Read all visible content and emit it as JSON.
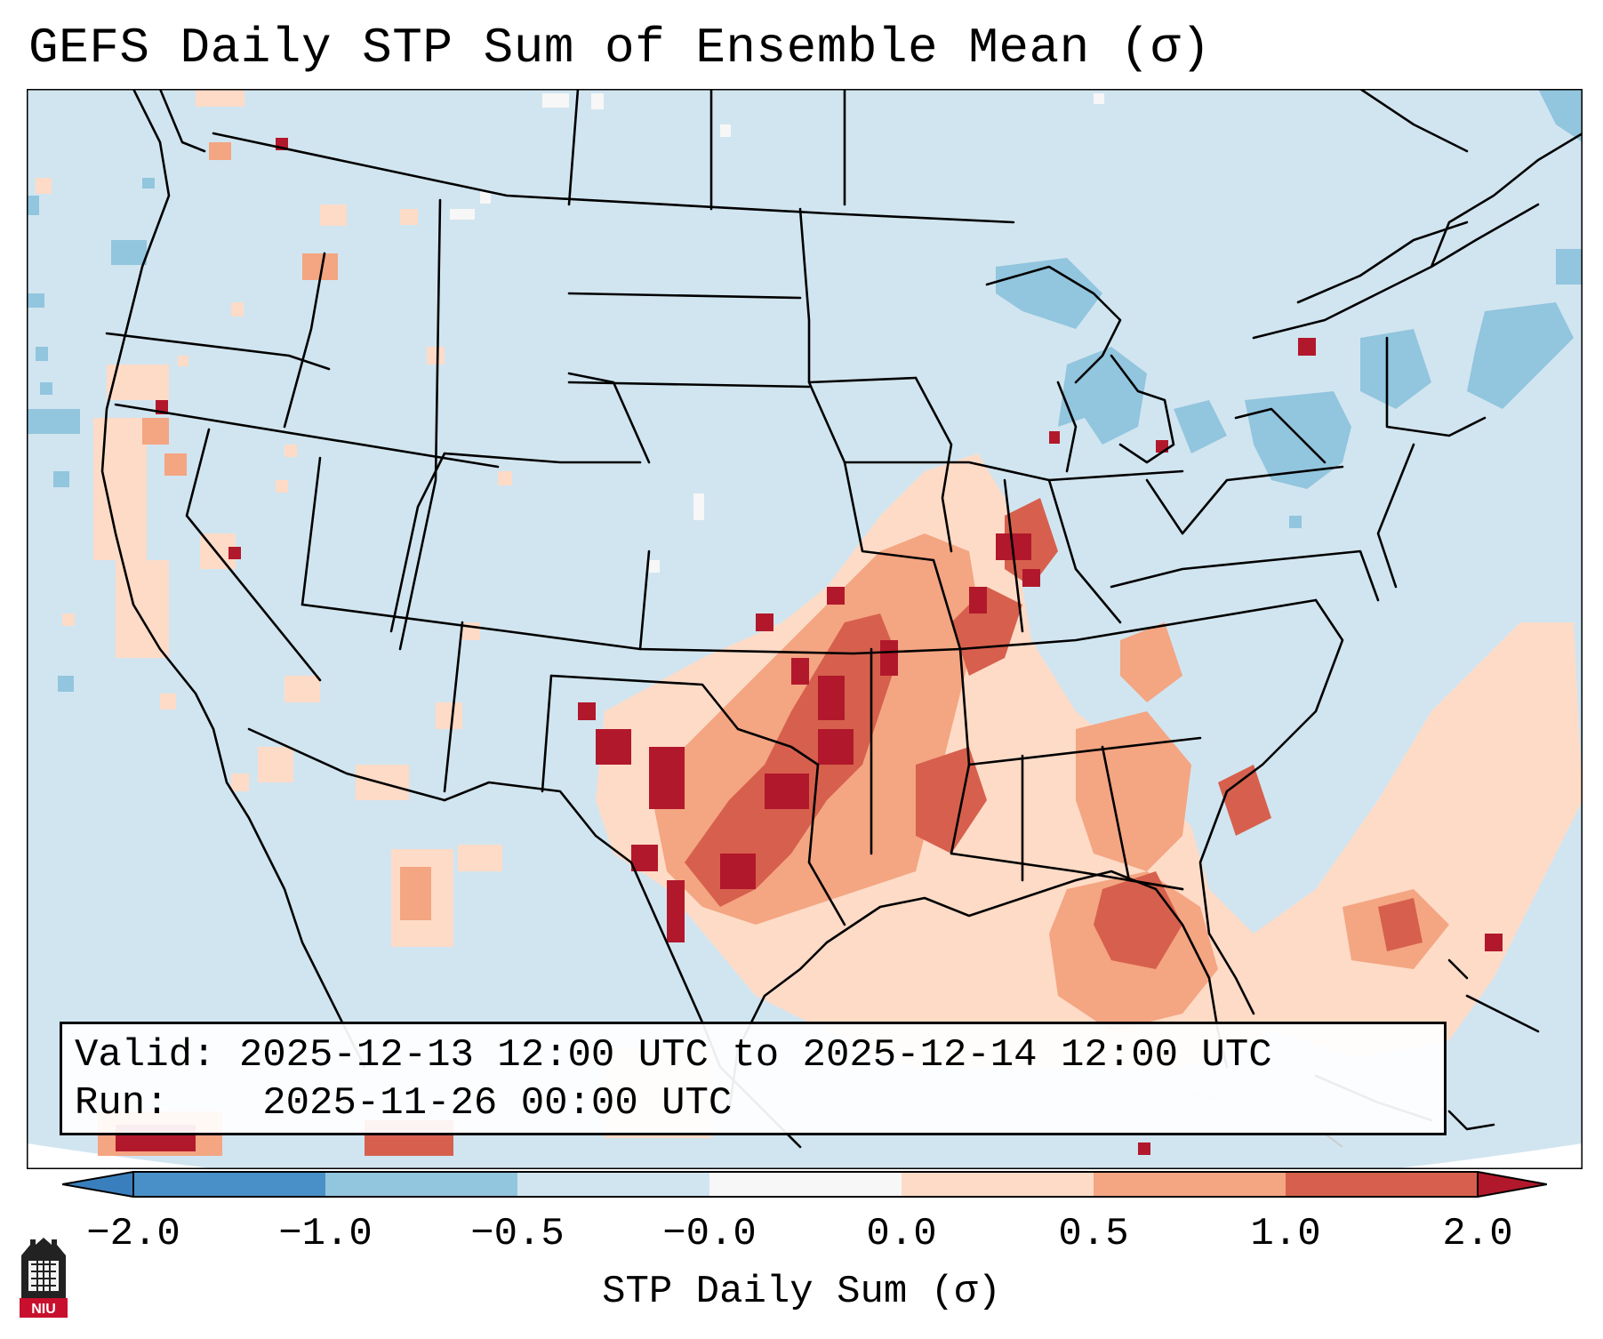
{
  "title": "GEFS Daily STP Sum of Ensemble Mean (σ)",
  "info": {
    "valid_label": "Valid:",
    "valid_value": "2025-12-13 12:00 UTC to 2025-12-14 12:00 UTC",
    "run_label": "Run:",
    "run_value": "2025-11-26 00:00 UTC"
  },
  "colorbar": {
    "label": "STP Daily Sum (σ)",
    "ticks": [
      "−2.0",
      "−1.0",
      "−0.5",
      "−0.0",
      "0.0",
      "0.5",
      "1.0",
      "2.0"
    ],
    "colors": {
      "extend_low": "#3a7fbd",
      "b1": "#4a90c8",
      "b2": "#92c5de",
      "b3": "#d1e5f0",
      "b4": "#f7f7f7",
      "b5": "#fddbc7",
      "b6": "#f4a582",
      "b7": "#d6604d",
      "extend_high": "#b2182b"
    }
  },
  "map": {
    "background_color": "#d1e5f0",
    "region": "Continental United States",
    "hotspots": [
      {
        "name": "southern-plains",
        "level": "> 2.0"
      },
      {
        "name": "mid-mississippi-valley",
        "level": "1.0–2.0"
      },
      {
        "name": "gulf-of-mexico",
        "level": "0.5–1.0"
      },
      {
        "name": "great-lakes",
        "level": "−1.0 to −0.5"
      }
    ]
  },
  "logo": {
    "text": "NIU"
  }
}
